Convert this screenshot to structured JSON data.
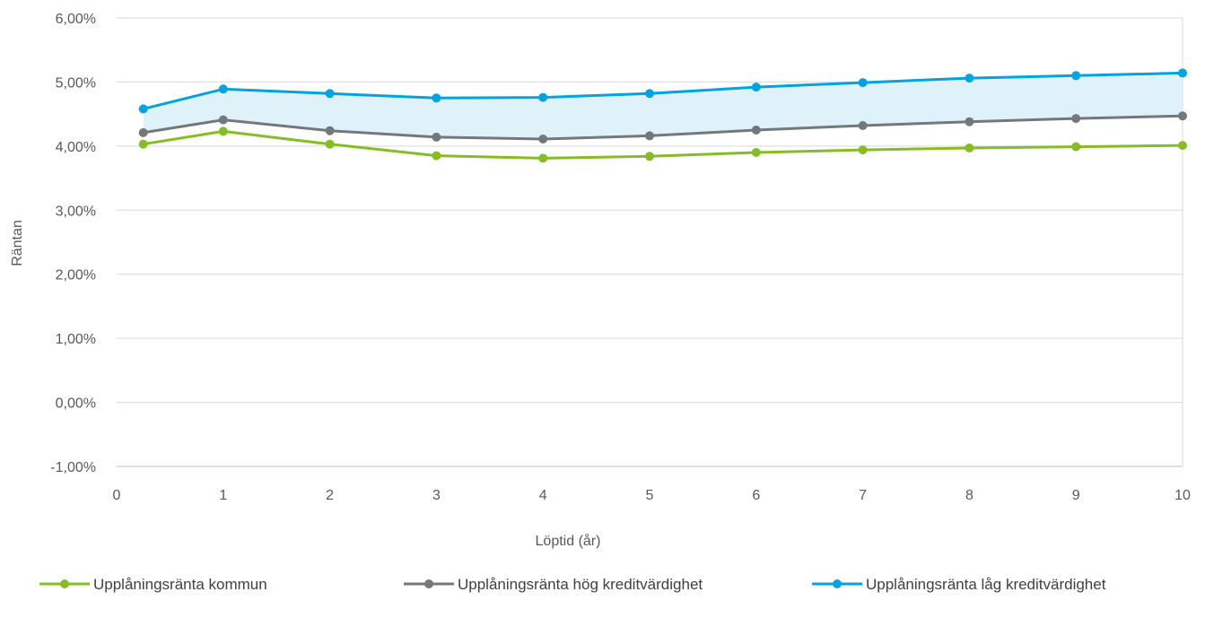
{
  "chart_data": {
    "type": "line",
    "xlabel": "Löptid (år)",
    "ylabel": "Räntan",
    "xlim": [
      0,
      10
    ],
    "ylim": [
      -1,
      6
    ],
    "x_ticks": [
      "0",
      "1",
      "2",
      "3",
      "4",
      "5",
      "6",
      "7",
      "8",
      "9",
      "10"
    ],
    "y_ticks": [
      "-1,00%",
      "0,00%",
      "1,00%",
      "2,00%",
      "3,00%",
      "4,00%",
      "5,00%",
      "6,00%"
    ],
    "grid": true,
    "legend_position": "bottom",
    "band_fill": {
      "between": [
        "Upplåningsränta hög kreditvärdighet",
        "Upplåningsränta låg kreditvärdighet"
      ],
      "color": "#dff2fa"
    },
    "x": [
      0.25,
      1,
      2,
      3,
      4,
      5,
      6,
      7,
      8,
      9,
      10
    ],
    "series": [
      {
        "name": "Upplåningsränta kommun",
        "color": "#86bc25",
        "values": [
          4.03,
          4.23,
          4.03,
          3.85,
          3.81,
          3.84,
          3.9,
          3.94,
          3.97,
          3.99,
          4.01
        ]
      },
      {
        "name": "Upplåningsränta hög kreditvärdighet",
        "color": "#75787b",
        "values": [
          4.21,
          4.41,
          4.24,
          4.14,
          4.11,
          4.16,
          4.25,
          4.32,
          4.38,
          4.43,
          4.47
        ]
      },
      {
        "name": "Upplåningsränta låg kreditvärdighet",
        "color": "#00a3e0",
        "values": [
          4.58,
          4.89,
          4.82,
          4.75,
          4.76,
          4.82,
          4.92,
          4.99,
          5.06,
          5.1,
          5.14
        ]
      }
    ]
  }
}
